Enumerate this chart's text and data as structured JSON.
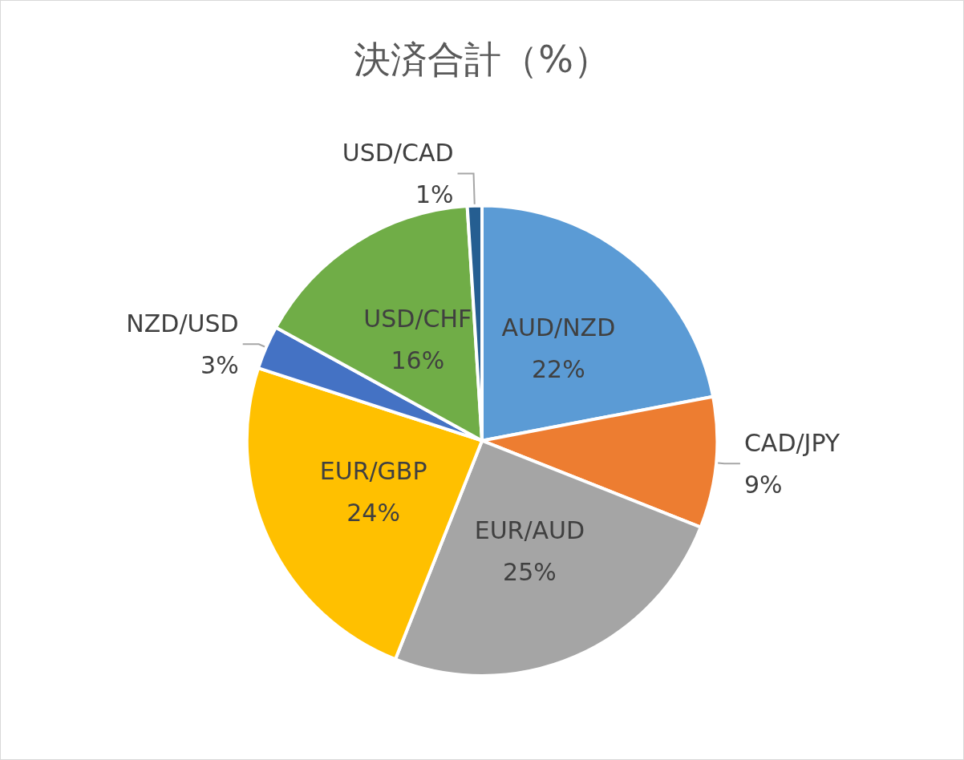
{
  "chart_data": {
    "type": "pie",
    "title": "決済合計（%）",
    "categories": [
      "AUD/NZD",
      "CAD/JPY",
      "EUR/AUD",
      "EUR/GBP",
      "NZD/USD",
      "USD/CHF",
      "USD/CAD"
    ],
    "values": [
      22,
      9,
      25,
      24,
      3,
      16,
      1
    ],
    "value_labels": [
      "22%",
      "9%",
      "25%",
      "24%",
      "3%",
      "16%",
      "1%"
    ],
    "colors": [
      "#5b9bd5",
      "#ed7d31",
      "#a5a5a5",
      "#ffc000",
      "#4472c4",
      "#70ad47",
      "#255e91"
    ],
    "legend": false
  }
}
